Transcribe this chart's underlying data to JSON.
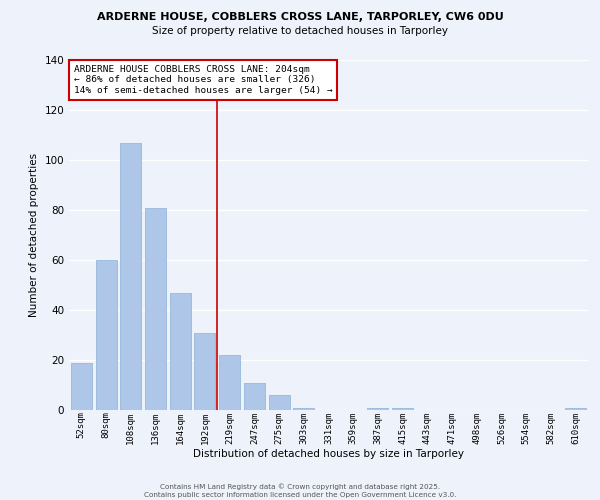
{
  "title_line1": "ARDERNE HOUSE, COBBLERS CROSS LANE, TARPORLEY, CW6 0DU",
  "title_line2": "Size of property relative to detached houses in Tarporley",
  "bar_labels": [
    "52sqm",
    "80sqm",
    "108sqm",
    "136sqm",
    "164sqm",
    "192sqm",
    "219sqm",
    "247sqm",
    "275sqm",
    "303sqm",
    "331sqm",
    "359sqm",
    "387sqm",
    "415sqm",
    "443sqm",
    "471sqm",
    "498sqm",
    "526sqm",
    "554sqm",
    "582sqm",
    "610sqm"
  ],
  "bar_values": [
    19,
    60,
    107,
    81,
    47,
    31,
    22,
    11,
    6,
    1,
    0,
    0,
    1,
    1,
    0,
    0,
    0,
    0,
    0,
    0,
    1
  ],
  "bar_color": "#aec6e8",
  "vline_x": 5.5,
  "vline_color": "#cc0000",
  "xlabel": "Distribution of detached houses by size in Tarporley",
  "ylabel": "Number of detached properties",
  "ylim": [
    0,
    140
  ],
  "yticks": [
    0,
    20,
    40,
    60,
    80,
    100,
    120,
    140
  ],
  "annotation_title": "ARDERNE HOUSE COBBLERS CROSS LANE: 204sqm",
  "annotation_line2": "← 86% of detached houses are smaller (326)",
  "annotation_line3": "14% of semi-detached houses are larger (54) →",
  "annotation_box_color": "#ffffff",
  "annotation_box_edge": "#cc0000",
  "footer_line1": "Contains HM Land Registry data © Crown copyright and database right 2025.",
  "footer_line2": "Contains public sector information licensed under the Open Government Licence v3.0.",
  "background_color": "#eef2fa",
  "grid_color": "#ffffff"
}
